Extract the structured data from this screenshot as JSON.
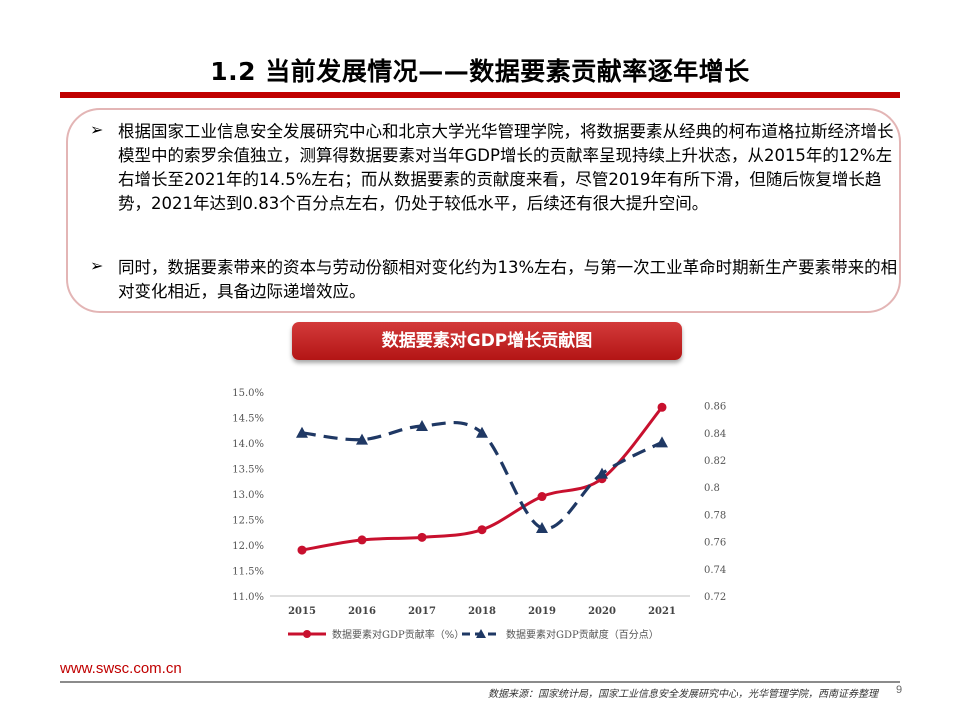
{
  "slide": {
    "title": "1.2 当前发展情况——数据要素贡献率逐年增长",
    "bullets": [
      "根据国家工业信息安全发展研究中心和北京大学光华管理学院，将数据要素从经典的柯布道格拉斯经济增长模型中的索罗余值独立，测算得数据要素对当年GDP增长的贡献率呈现持续上升状态，从2015年的12%左右增长至2021年的14.5%左右；而从数据要素的贡献度来看，尽管2019年有所下滑，但随后恢复增长趋势，2021年达到0.83个百分点左右，仍处于较低水平，后续还有很大提升空间。",
      "同时，数据要素带来的资本与劳动份额相对变化约为13%左右，与第一次工业革命时期新生产要素带来的相对变化相近，具备边际递增效应。"
    ],
    "bullet_symbol": "➢",
    "chart_banner": "数据要素对GDP增长贡献图",
    "website": "www.swsc.com.cn",
    "source": "数据来源：国家统计局，国家工业信息安全发展研究中心，光华管理学院，西南证券整理",
    "page_number": "9"
  },
  "colors": {
    "accent": "#c00000",
    "series_rate": "#c8102e",
    "series_degree": "#1f3864"
  },
  "chart_data": {
    "type": "line",
    "x": [
      "2015",
      "2016",
      "2017",
      "2018",
      "2019",
      "2020",
      "2021"
    ],
    "y_left_ticks": [
      "11.0%",
      "11.5%",
      "12.0%",
      "12.5%",
      "13.0%",
      "13.5%",
      "14.0%",
      "14.5%",
      "15.0%"
    ],
    "y_left_range": [
      11.0,
      15.0
    ],
    "y_right_ticks": [
      "0.72",
      "0.74",
      "0.76",
      "0.78",
      "0.8",
      "0.82",
      "0.84",
      "0.86"
    ],
    "y_right_range": [
      0.72,
      0.87
    ],
    "series": [
      {
        "name": "数据要素对GDP贡献率（%）",
        "axis": "left",
        "style": "solid-circle",
        "values": [
          11.9,
          12.1,
          12.15,
          12.3,
          12.95,
          13.3,
          14.7
        ]
      },
      {
        "name": "数据要素对GDP贡献度（百分点）",
        "axis": "right",
        "style": "dashed-triangle",
        "values": [
          0.84,
          0.835,
          0.845,
          0.84,
          0.77,
          0.81,
          0.833
        ]
      }
    ],
    "legend_position": "bottom",
    "grid": false
  }
}
